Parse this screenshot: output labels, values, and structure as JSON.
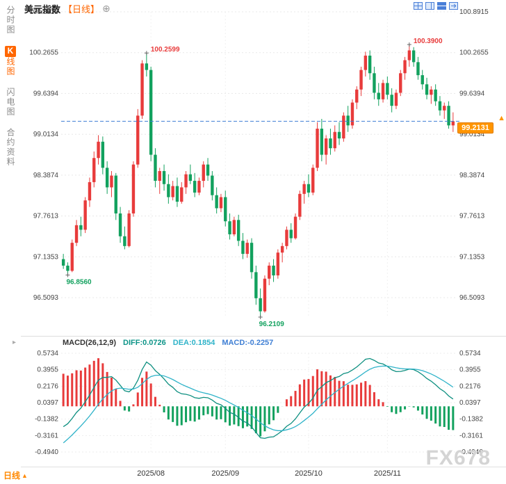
{
  "header": {
    "symbol": "美元指数",
    "period_tag": "【日线】",
    "add_icon": "⊕"
  },
  "sidebar": {
    "items": [
      {
        "label": "分时图",
        "active": false
      },
      {
        "k_chip": "K",
        "label": "线图",
        "active": true
      },
      {
        "label": "闪电图",
        "active": false
      },
      {
        "label": "合约资料",
        "active": false
      }
    ]
  },
  "footer": {
    "period_label": "日线",
    "arrow_icon": "▲"
  },
  "icons": {
    "macd_toggle": "▸",
    "latest_arrow": "▲"
  },
  "watermark": "FX678",
  "chart_data": {
    "type": "candlestick+macd",
    "title": "美元指数 日线 (US Dollar Index Daily)",
    "y_axis_labels": [
      100.8915,
      100.2655,
      99.6394,
      99.0134,
      98.3874,
      97.7613,
      97.1353,
      96.5093
    ],
    "x_ticks": [
      {
        "label": "2025/08",
        "index": 20
      },
      {
        "label": "2025/09",
        "index": 37
      },
      {
        "label": "2025/10",
        "index": 56
      },
      {
        "label": "2025/11",
        "index": 74
      }
    ],
    "current_price": {
      "value": 99.2131,
      "label": "99.2131"
    },
    "annotations": [
      {
        "index": 1,
        "price": 96.856,
        "text": "96.8560",
        "type": "low"
      },
      {
        "index": 19,
        "price": 100.2599,
        "text": "100.2599",
        "type": "high"
      },
      {
        "index": 45,
        "price": 96.2109,
        "text": "96.2109",
        "type": "low"
      },
      {
        "index": 79,
        "price": 100.39,
        "text": "100.3900",
        "type": "high"
      }
    ],
    "candles": [
      [
        97.1,
        97.18,
        96.95,
        97.0
      ],
      [
        97.0,
        97.05,
        96.856,
        96.92
      ],
      [
        96.92,
        97.4,
        96.9,
        97.35
      ],
      [
        97.35,
        97.7,
        97.3,
        97.62
      ],
      [
        97.62,
        97.75,
        97.45,
        97.55
      ],
      [
        97.55,
        98.05,
        97.5,
        98.0
      ],
      [
        98.0,
        98.35,
        97.9,
        98.28
      ],
      [
        98.28,
        98.75,
        98.2,
        98.65
      ],
      [
        98.65,
        99.0,
        98.55,
        98.9
      ],
      [
        98.9,
        98.98,
        98.4,
        98.5
      ],
      [
        98.5,
        98.6,
        98.1,
        98.2
      ],
      [
        98.2,
        98.45,
        98.05,
        98.38
      ],
      [
        98.38,
        98.42,
        97.7,
        97.8
      ],
      [
        97.8,
        97.9,
        97.35,
        97.45
      ],
      [
        97.45,
        97.6,
        97.25,
        97.3
      ],
      [
        97.3,
        97.85,
        97.28,
        97.8
      ],
      [
        97.8,
        98.6,
        97.75,
        98.55
      ],
      [
        98.55,
        99.4,
        98.5,
        99.3
      ],
      [
        99.3,
        100.15,
        99.25,
        100.1
      ],
      [
        100.1,
        100.2599,
        99.9,
        100.0
      ],
      [
        100.0,
        100.05,
        98.6,
        98.7
      ],
      [
        98.7,
        98.8,
        98.2,
        98.3
      ],
      [
        98.3,
        98.5,
        98.1,
        98.45
      ],
      [
        98.45,
        98.55,
        98.15,
        98.25
      ],
      [
        98.25,
        98.4,
        97.95,
        98.05
      ],
      [
        98.05,
        98.3,
        98.0,
        98.22
      ],
      [
        98.22,
        98.35,
        97.9,
        97.98
      ],
      [
        97.98,
        98.28,
        97.95,
        98.2
      ],
      [
        98.2,
        98.45,
        98.1,
        98.4
      ],
      [
        98.4,
        98.55,
        98.25,
        98.3
      ],
      [
        98.3,
        98.42,
        98.05,
        98.12
      ],
      [
        98.12,
        98.35,
        98.08,
        98.3
      ],
      [
        98.3,
        98.6,
        98.2,
        98.55
      ],
      [
        98.55,
        98.65,
        98.3,
        98.38
      ],
      [
        98.38,
        98.45,
        98.0,
        98.08
      ],
      [
        98.08,
        98.2,
        97.8,
        97.88
      ],
      [
        97.88,
        98.1,
        97.82,
        98.05
      ],
      [
        98.05,
        98.15,
        97.6,
        97.68
      ],
      [
        97.68,
        97.8,
        97.4,
        97.48
      ],
      [
        97.48,
        97.75,
        97.45,
        97.7
      ],
      [
        97.7,
        97.78,
        97.3,
        97.38
      ],
      [
        97.38,
        97.5,
        97.1,
        97.18
      ],
      [
        97.18,
        97.4,
        97.12,
        97.35
      ],
      [
        97.35,
        97.42,
        96.8,
        96.9
      ],
      [
        96.9,
        97.0,
        96.4,
        96.5
      ],
      [
        96.5,
        96.65,
        96.2109,
        96.3
      ],
      [
        96.3,
        96.85,
        96.28,
        96.8
      ],
      [
        96.8,
        97.05,
        96.7,
        97.0
      ],
      [
        97.0,
        97.1,
        96.75,
        96.85
      ],
      [
        96.85,
        97.25,
        96.8,
        97.2
      ],
      [
        97.2,
        97.35,
        97.05,
        97.3
      ],
      [
        97.3,
        97.6,
        97.25,
        97.55
      ],
      [
        97.55,
        97.65,
        97.35,
        97.42
      ],
      [
        97.42,
        97.8,
        97.4,
        97.75
      ],
      [
        97.75,
        98.15,
        97.7,
        98.1
      ],
      [
        98.1,
        98.3,
        97.95,
        98.25
      ],
      [
        98.25,
        98.4,
        98.05,
        98.12
      ],
      [
        98.12,
        98.55,
        98.08,
        98.5
      ],
      [
        98.5,
        99.2,
        98.45,
        99.1
      ],
      [
        99.1,
        99.25,
        98.6,
        98.7
      ],
      [
        98.7,
        99.0,
        98.55,
        98.95
      ],
      [
        98.95,
        99.1,
        98.7,
        98.8
      ],
      [
        98.8,
        99.15,
        98.75,
        99.05
      ],
      [
        99.05,
        99.2,
        98.85,
        98.95
      ],
      [
        98.95,
        99.35,
        98.9,
        99.3
      ],
      [
        99.3,
        99.45,
        99.05,
        99.15
      ],
      [
        99.15,
        99.55,
        99.1,
        99.5
      ],
      [
        99.5,
        99.75,
        99.4,
        99.7
      ],
      [
        99.7,
        100.05,
        99.6,
        100.0
      ],
      [
        100.0,
        100.28,
        99.9,
        100.22
      ],
      [
        100.22,
        100.3,
        99.85,
        99.95
      ],
      [
        99.95,
        100.05,
        99.55,
        99.65
      ],
      [
        99.65,
        99.8,
        99.45,
        99.55
      ],
      [
        99.55,
        99.85,
        99.5,
        99.8
      ],
      [
        99.8,
        99.9,
        99.55,
        99.62
      ],
      [
        99.62,
        99.72,
        99.35,
        99.45
      ],
      [
        99.45,
        99.7,
        99.4,
        99.65
      ],
      [
        99.65,
        100.0,
        99.6,
        99.95
      ],
      [
        99.95,
        100.2,
        99.85,
        100.15
      ],
      [
        100.15,
        100.39,
        100.05,
        100.3
      ],
      [
        100.3,
        100.35,
        100.05,
        100.12
      ],
      [
        100.12,
        100.2,
        99.85,
        99.92
      ],
      [
        99.92,
        100.0,
        99.7,
        99.78
      ],
      [
        99.78,
        99.88,
        99.55,
        99.62
      ],
      [
        99.62,
        99.75,
        99.48,
        99.7
      ],
      [
        99.7,
        99.78,
        99.45,
        99.52
      ],
      [
        99.52,
        99.6,
        99.3,
        99.38
      ],
      [
        99.38,
        99.5,
        99.25,
        99.45
      ],
      [
        99.45,
        99.52,
        99.1,
        99.15
      ],
      [
        99.15,
        99.35,
        99.05,
        99.2131
      ]
    ],
    "macd": {
      "title": "MACD(26,12,9)",
      "diff_label": "DIFF:0.0726",
      "dea_label": "DEA:0.1854",
      "macd_label": "MACD:-0.2257",
      "params": [
        26,
        12,
        9
      ],
      "y_axis_labels": [
        0.5734,
        0.3955,
        0.2176,
        0.0397,
        -0.1382,
        -0.3161,
        -0.494
      ]
    },
    "colors": {
      "up": "#e83b3b",
      "down": "#12a15e",
      "diff_line": "#0d8f80",
      "dea_line": "#2fb3c9",
      "dashed_line": "#3f7fd4",
      "tag_bg": "#ff9500",
      "accent": "#ff6600",
      "icon_blue": "#4a7fd8"
    }
  }
}
